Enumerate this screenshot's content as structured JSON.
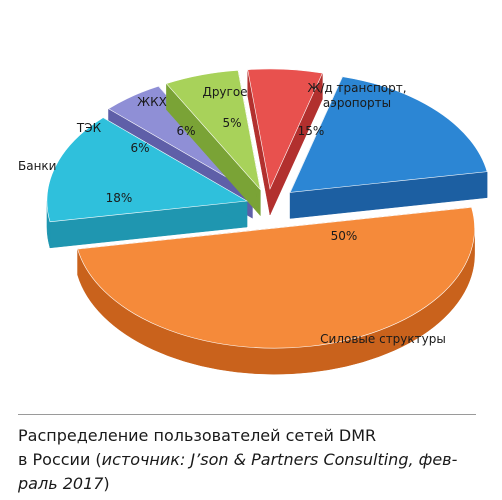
{
  "chart_data": {
    "type": "pie",
    "style": "3d-exploded",
    "slices": [
      {
        "label": "Силовые структуры",
        "value": 50,
        "value_label": "50%",
        "color": "#F58A3A",
        "side": "#C9621C"
      },
      {
        "label": "Ж/д транспорт,\nаэропорты",
        "value": 15,
        "value_label": "15%",
        "color": "#2FC0DC",
        "side": "#1F96B0"
      },
      {
        "label": "Другое",
        "value": 5,
        "value_label": "5%",
        "color": "#8F8FD6",
        "side": "#5F5FA8"
      },
      {
        "label": "ЖКХ",
        "value": 6,
        "value_label": "6%",
        "color": "#A8D25A",
        "side": "#7AA336"
      },
      {
        "label": "ТЭК",
        "value": 6,
        "value_label": "6%",
        "color": "#E8514E",
        "side": "#B2302E"
      },
      {
        "label": "Банки",
        "value": 18,
        "value_label": "18%",
        "color": "#2C86D4",
        "side": "#1C5FA2"
      }
    ]
  },
  "caption": {
    "line1": "Распределение пользователей сетей DMR",
    "line2_prefix": "в России (",
    "line2_italic": "источник: J’son & Partners Consulting, фев-",
    "line3_italic": "раль 2017",
    "line3_suffix": ")"
  }
}
